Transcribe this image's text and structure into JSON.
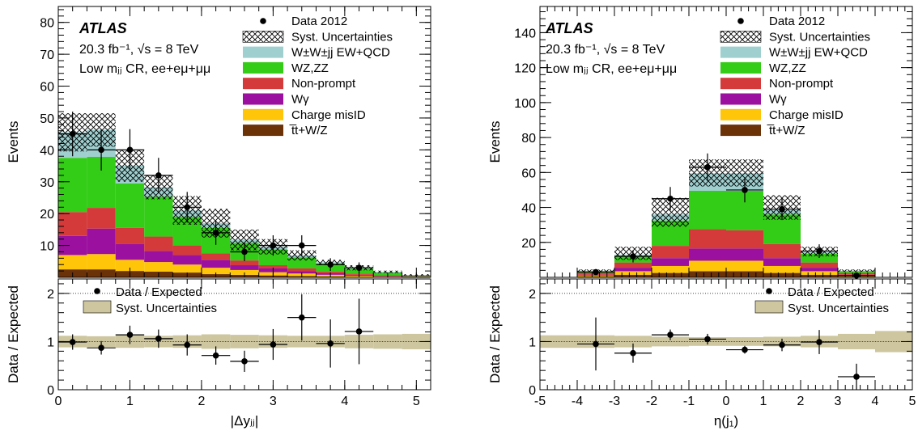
{
  "figure": {
    "panels": [
      {
        "atlas_label": "ATLAS",
        "lumi_text": "20.3 fb⁻¹, √s = 8 TeV",
        "region_text": "Low mⱼⱼ CR, ee+eμ+μμ",
        "xlabel": "|Δyⱼⱼ|",
        "ylabel_main": "Events",
        "ylabel_ratio": "Data / Expected"
      },
      {
        "atlas_label": "ATLAS",
        "lumi_text": "20.3 fb⁻¹, √s = 8 TeV",
        "region_text": "Low mⱼⱼ CR, ee+eμ+μμ",
        "xlabel": "η(j₁)",
        "ylabel_main": "Events",
        "ylabel_ratio": "Data / Expected"
      }
    ],
    "legend": {
      "data": "Data 2012",
      "syst": "Syst. Uncertainties",
      "wwjj": "W±W±jj EW+QCD",
      "wzzz": "WZ,ZZ",
      "nonprompt": "Non-prompt",
      "wgamma": "Wγ",
      "chargemisid": "Charge misID",
      "ttbar": "t̅t+W/Z"
    },
    "ratio_legend": {
      "data": "Data / Expected",
      "syst": "Syst. Uncertainties"
    }
  },
  "colors": {
    "wwjj": "#9fcfcf",
    "wzzz": "#33cc16",
    "nonprompt": "#d43a3a",
    "wgamma": "#9b109e",
    "chargemisid": "#ffc508",
    "ttbar": "#6b3208",
    "syst_band": "#cdc69e"
  },
  "chart_data": [
    {
      "type": "bar",
      "stacked": true,
      "xlim": [
        0,
        5.2
      ],
      "ylim": [
        0,
        85
      ],
      "xticks": [
        0,
        1,
        2,
        3,
        4,
        5
      ],
      "yticks": [
        10,
        20,
        30,
        40,
        50,
        60,
        70,
        80
      ],
      "bin_edges": [
        0,
        0.4,
        0.8,
        1.2,
        1.6,
        2.0,
        2.4,
        2.8,
        3.2,
        3.6,
        4.0,
        4.4,
        4.8,
        5.2
      ],
      "series": [
        {
          "key": "ttbar",
          "values": [
            2.5,
            2.5,
            2.0,
            1.8,
            1.5,
            1.0,
            0.8,
            0.6,
            0.4,
            0.3,
            0.2,
            0.1,
            0.05
          ]
        },
        {
          "key": "chargemisid",
          "values": [
            4.5,
            4.8,
            3.5,
            3.0,
            2.5,
            2.0,
            1.5,
            1.0,
            0.8,
            0.5,
            0.3,
            0.2,
            0.1
          ]
        },
        {
          "key": "wgamma",
          "values": [
            6.0,
            8.0,
            5.0,
            3.5,
            3.0,
            2.5,
            1.5,
            1.2,
            0.8,
            0.5,
            0.3,
            0.2,
            0.1
          ]
        },
        {
          "key": "nonprompt",
          "values": [
            7.5,
            6.5,
            5.0,
            4.5,
            3.0,
            2.0,
            1.5,
            1.0,
            0.8,
            0.5,
            0.4,
            0.2,
            0.1
          ]
        },
        {
          "key": "wzzz",
          "values": [
            17.0,
            16.0,
            14.0,
            12.5,
            9.0,
            8.0,
            5.5,
            5.0,
            3.5,
            2.5,
            1.5,
            0.8,
            0.3
          ]
        },
        {
          "key": "wwjj",
          "values": [
            8.0,
            8.5,
            5.5,
            3.0,
            2.0,
            1.5,
            1.0,
            0.8,
            0.6,
            0.4,
            0.3,
            0.2,
            0.1
          ]
        }
      ],
      "syst_total": [
        45.5,
        46.3,
        35.0,
        28.3,
        21.0,
        17.0,
        11.8,
        9.6,
        6.9,
        4.7,
        3.0,
        1.7,
        0.75
      ],
      "syst_up": [
        51.5,
        51.5,
        40.0,
        32.0,
        25.5,
        21.5,
        15.0,
        12.0,
        8.5,
        5.5,
        3.8,
        2.1,
        1.0
      ],
      "syst_down": [
        39.5,
        41.0,
        30.0,
        24.5,
        16.5,
        12.5,
        8.5,
        7.2,
        5.3,
        3.9,
        2.2,
        1.3,
        0.5
      ],
      "data": [
        {
          "x": 0.2,
          "y": 45,
          "ey": 7
        },
        {
          "x": 0.6,
          "y": 40,
          "ey": 6.5
        },
        {
          "x": 1.0,
          "y": 40,
          "ey": 6.5
        },
        {
          "x": 1.4,
          "y": 32,
          "ey": 5.5
        },
        {
          "x": 1.8,
          "y": 22,
          "ey": 4.8
        },
        {
          "x": 2.2,
          "y": 14,
          "ey": 3.8
        },
        {
          "x": 2.6,
          "y": 8,
          "ey": 2.9
        },
        {
          "x": 3.0,
          "y": 10,
          "ey": 3.2
        },
        {
          "x": 3.4,
          "y": 10,
          "ey": 3.2
        },
        {
          "x": 3.8,
          "y": 4,
          "ey": 2.0
        },
        {
          "x": 4.2,
          "y": 3,
          "ey": 1.7
        }
      ],
      "ratio": {
        "ylim": [
          0,
          2.3
        ],
        "yticks": [
          0,
          1,
          2
        ],
        "points": [
          {
            "x": 0.2,
            "y": 0.99,
            "ey": 0.16
          },
          {
            "x": 0.6,
            "y": 0.87,
            "ey": 0.14
          },
          {
            "x": 1.0,
            "y": 1.14,
            "ey": 0.19
          },
          {
            "x": 1.4,
            "y": 1.06,
            "ey": 0.19
          },
          {
            "x": 1.8,
            "y": 0.93,
            "ey": 0.22
          },
          {
            "x": 2.2,
            "y": 0.71,
            "ey": 0.19
          },
          {
            "x": 2.6,
            "y": 0.59,
            "ey": 0.22
          },
          {
            "x": 3.0,
            "y": 0.94,
            "ey": 0.32
          },
          {
            "x": 3.4,
            "y": 1.5,
            "ey": 0.48
          },
          {
            "x": 3.8,
            "y": 0.96,
            "ey": 0.5
          },
          {
            "x": 4.2,
            "y": 1.21,
            "ey": 0.68
          }
        ],
        "band": [
          0.12,
          0.11,
          0.13,
          0.12,
          0.13,
          0.15,
          0.14,
          0.13,
          0.12,
          0.12,
          0.14,
          0.15,
          0.16
        ]
      }
    },
    {
      "type": "bar",
      "stacked": true,
      "xlim": [
        -5,
        5
      ],
      "ylim": [
        0,
        155
      ],
      "xticks": [
        -5,
        -4,
        -3,
        -2,
        -1,
        0,
        1,
        2,
        3,
        4,
        5
      ],
      "yticks": [
        20,
        40,
        60,
        80,
        100,
        120,
        140
      ],
      "bin_edges": [
        -5,
        -4,
        -3,
        -2,
        -1,
        0,
        1,
        2,
        3,
        4,
        5
      ],
      "series": [
        {
          "key": "ttbar",
          "values": [
            0,
            0.5,
            1.5,
            2.5,
            3.5,
            3.5,
            2.5,
            1.5,
            0.5,
            0
          ]
        },
        {
          "key": "chargemisid",
          "values": [
            0,
            0.5,
            2.0,
            4.0,
            6.0,
            6.0,
            4.0,
            2.0,
            0.5,
            0
          ]
        },
        {
          "key": "wgamma",
          "values": [
            0,
            0.5,
            2.0,
            4.5,
            7.0,
            7.0,
            4.5,
            2.0,
            0.5,
            0
          ]
        },
        {
          "key": "nonprompt",
          "values": [
            0,
            1.0,
            3.0,
            7.0,
            11.0,
            10.5,
            8.0,
            3.0,
            1.0,
            0
          ]
        },
        {
          "key": "wzzz",
          "values": [
            0,
            1.0,
            3.5,
            14.5,
            22.0,
            22.5,
            17.0,
            5.0,
            1.0,
            0
          ]
        },
        {
          "key": "wwjj",
          "values": [
            0,
            0.3,
            1.0,
            3.5,
            10.0,
            10.0,
            2.5,
            1.0,
            0.3,
            0
          ]
        }
      ],
      "syst_total": [
        0,
        3.8,
        13.0,
        36.0,
        59.5,
        59.5,
        38.5,
        14.5,
        3.8,
        0
      ],
      "syst_up": [
        0,
        4.5,
        17.5,
        45.5,
        67.5,
        67.5,
        47.0,
        17.5,
        4.5,
        0
      ],
      "syst_down": [
        0,
        3.2,
        10.0,
        29.0,
        52.0,
        52.0,
        33.0,
        12.0,
        3.2,
        0
      ],
      "data": [
        {
          "x": -3.5,
          "y": 3,
          "ey": 1.7
        },
        {
          "x": -2.5,
          "y": 12,
          "ey": 3.5
        },
        {
          "x": -1.5,
          "y": 45,
          "ey": 6.7
        },
        {
          "x": -0.5,
          "y": 63,
          "ey": 7.9
        },
        {
          "x": 0.5,
          "y": 50,
          "ey": 7.1
        },
        {
          "x": 1.5,
          "y": 39,
          "ey": 6.2
        },
        {
          "x": 2.5,
          "y": 15,
          "ey": 3.9
        },
        {
          "x": 3.5,
          "y": 1,
          "ey": 1.0
        }
      ],
      "ratio": {
        "ylim": [
          0,
          2.3
        ],
        "yticks": [
          0,
          1,
          2
        ],
        "points": [
          {
            "x": -3.5,
            "y": 0.95,
            "ey": 0.55
          },
          {
            "x": -2.5,
            "y": 0.76,
            "ey": 0.2
          },
          {
            "x": -1.5,
            "y": 1.14,
            "ey": 0.11
          },
          {
            "x": -0.5,
            "y": 1.05,
            "ey": 0.11
          },
          {
            "x": 0.5,
            "y": 0.83,
            "ey": 0.08
          },
          {
            "x": 1.5,
            "y": 0.93,
            "ey": 0.13
          },
          {
            "x": 2.5,
            "y": 0.99,
            "ey": 0.25
          },
          {
            "x": 3.5,
            "y": 0.27,
            "ey": 0.27
          }
        ],
        "band": [
          0.13,
          0.13,
          0.12,
          0.1,
          0.09,
          0.09,
          0.1,
          0.12,
          0.16,
          0.22
        ]
      }
    }
  ]
}
